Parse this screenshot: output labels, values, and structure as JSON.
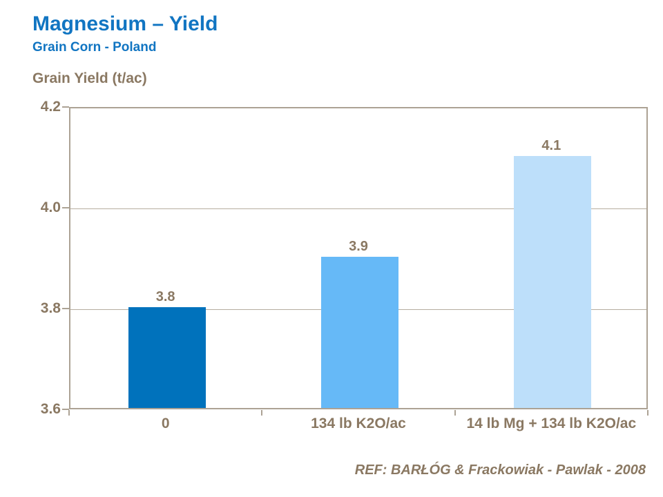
{
  "header": {
    "title": "Magnesium – Yield",
    "subtitle": "Grain Corn - Poland"
  },
  "chart_data": {
    "type": "bar",
    "title": "Magnesium – Yield",
    "subtitle": "Grain Corn - Poland",
    "ylabel": "Grain Yield (t/ac)",
    "xlabel": "",
    "categories": [
      "0",
      "134 lb K2O/ac",
      "14 lb Mg + 134 lb K2O/ac"
    ],
    "values": [
      3.8,
      3.9,
      4.1
    ],
    "value_labels": [
      "3.8",
      "3.9",
      "4.1"
    ],
    "bar_colors": [
      "#0072BC",
      "#66B9F7",
      "#BDDFFA"
    ],
    "ylim": [
      3.6,
      4.2
    ],
    "yticks": [
      3.6,
      3.8,
      4.0,
      4.2
    ],
    "ytick_labels": [
      "3.6",
      "3.8",
      "4.0",
      "4.2"
    ],
    "grid": "horizontal-interior-only",
    "legend": "none"
  },
  "footer": {
    "reference": "REF:  BARŁÓG & Frackowiak - Pawlak - 2008"
  },
  "colors": {
    "title_blue": "#1175C2",
    "text_taupe": "#8A7862",
    "axis_line": "#ACA294",
    "gridline": "#B5AC9F",
    "bar_dark_blue": "#0072BC",
    "bar_medium_blue": "#66B9F7",
    "bar_light_blue": "#BDDFFA",
    "background": "#FFFFFF"
  }
}
